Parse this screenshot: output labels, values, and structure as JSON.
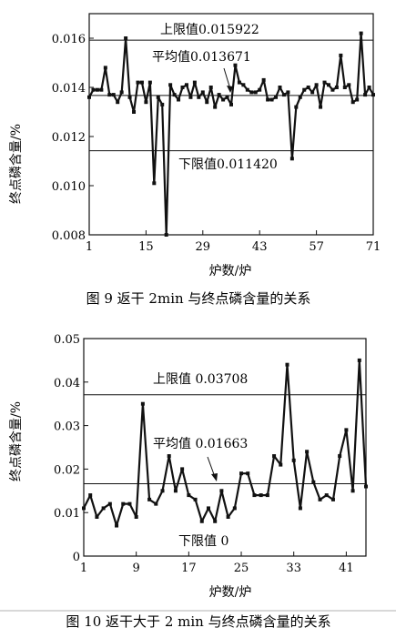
{
  "chart_data": [
    {
      "type": "line",
      "xlabel": "炉数/炉",
      "ylabel": "终点磷含量/%",
      "ylim": [
        0.008,
        0.017
      ],
      "xlim": [
        1,
        71
      ],
      "yticks": [
        "0.008",
        "0.010",
        "0.012",
        "0.014",
        "0.016"
      ],
      "xticks": [
        "1",
        "15",
        "29",
        "43",
        "57",
        "71"
      ],
      "x": [
        1,
        2,
        3,
        4,
        5,
        6,
        7,
        8,
        9,
        10,
        11,
        12,
        13,
        14,
        15,
        16,
        17,
        18,
        19,
        20,
        21,
        22,
        23,
        24,
        25,
        26,
        27,
        28,
        29,
        30,
        31,
        32,
        33,
        34,
        35,
        36,
        37,
        38,
        39,
        40,
        41,
        42,
        43,
        44,
        45,
        46,
        47,
        48,
        49,
        50,
        51,
        52,
        53,
        54,
        55,
        56,
        57,
        58,
        59,
        60,
        61,
        62,
        63,
        64,
        65,
        66,
        67,
        68,
        69,
        70,
        71
      ],
      "y": [
        0.0136,
        0.0139,
        0.0139,
        0.0139,
        0.0148,
        0.0137,
        0.0137,
        0.0134,
        0.0138,
        0.016,
        0.0136,
        0.013,
        0.0142,
        0.0142,
        0.0134,
        0.0142,
        0.0101,
        0.0136,
        0.0133,
        0.008,
        0.0141,
        0.0137,
        0.0135,
        0.014,
        0.0141,
        0.0136,
        0.0142,
        0.0136,
        0.0138,
        0.0134,
        0.014,
        0.0132,
        0.0137,
        0.0135,
        0.0136,
        0.0133,
        0.0149,
        0.0142,
        0.0141,
        0.0139,
        0.0138,
        0.0138,
        0.0139,
        0.0143,
        0.0135,
        0.0135,
        0.0136,
        0.014,
        0.0137,
        0.0138,
        0.0111,
        0.0132,
        0.0136,
        0.0139,
        0.014,
        0.0138,
        0.0141,
        0.0132,
        0.0142,
        0.0141,
        0.0139,
        0.014,
        0.0153,
        0.014,
        0.0141,
        0.0134,
        0.0135,
        0.0162,
        0.0137,
        0.014,
        0.0137
      ],
      "reference_lines": [
        {
          "value": 0.015922,
          "label": "上限值0.015922"
        },
        {
          "value": 0.013671,
          "label": "平均值0.013671"
        },
        {
          "value": 0.01142,
          "label": "下限值0.011420"
        }
      ],
      "caption": "图 9   返干 2min 与终点磷含量的关系"
    },
    {
      "type": "line",
      "xlabel": "炉数/炉",
      "ylabel": "终点磷含量/%",
      "ylim": [
        0,
        0.05
      ],
      "xlim": [
        1,
        44
      ],
      "yticks": [
        "0",
        "0.01",
        "0.02",
        "0.03",
        "0.04",
        "0.05"
      ],
      "xticks": [
        "1",
        "9",
        "17",
        "25",
        "33",
        "41"
      ],
      "x": [
        1,
        2,
        3,
        4,
        5,
        6,
        7,
        8,
        9,
        10,
        11,
        12,
        13,
        14,
        15,
        16,
        17,
        18,
        19,
        20,
        21,
        22,
        23,
        24,
        25,
        26,
        27,
        28,
        29,
        30,
        31,
        32,
        33,
        34,
        35,
        36,
        37,
        38,
        39,
        40,
        41,
        42,
        43,
        44
      ],
      "y": [
        0.011,
        0.014,
        0.009,
        0.011,
        0.012,
        0.007,
        0.012,
        0.012,
        0.009,
        0.035,
        0.013,
        0.012,
        0.015,
        0.023,
        0.015,
        0.02,
        0.014,
        0.013,
        0.008,
        0.011,
        0.008,
        0.015,
        0.009,
        0.011,
        0.019,
        0.019,
        0.014,
        0.014,
        0.014,
        0.023,
        0.021,
        0.044,
        0.022,
        0.011,
        0.024,
        0.017,
        0.013,
        0.014,
        0.013,
        0.023,
        0.029,
        0.015,
        0.045,
        0.016
      ],
      "reference_lines": [
        {
          "value": 0.03708,
          "label": "上限值 0.03708"
        },
        {
          "value": 0.01663,
          "label": "平均值 0.01663"
        },
        {
          "value": 0,
          "label": "下限值 0"
        }
      ],
      "caption": "图 10   返干大于 2 min 与终点磷含量的关系"
    }
  ]
}
